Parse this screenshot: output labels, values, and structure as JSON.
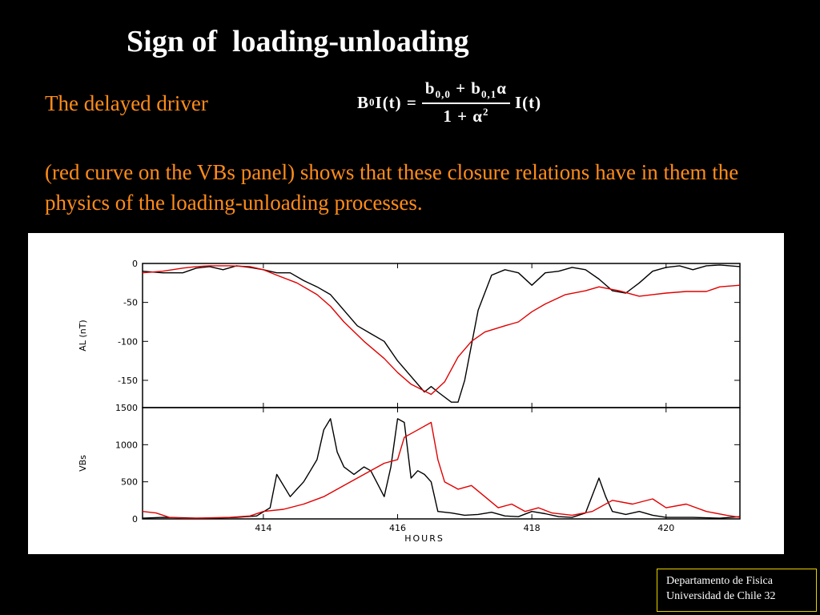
{
  "slide": {
    "title": "Sign of  loading-unloading",
    "driver_label": "The delayed driver",
    "explanation": "(red curve on the VBs panel) shows that these closure relations have in them the physics of the loading-unloading processes.",
    "equation": {
      "lhs_B": "B",
      "lhs_B_sub": "0",
      "lhs_rest": "I(t) =",
      "num_b1": "b",
      "num_b1_sub": "0,0",
      "num_plus": "+ b",
      "num_b2_sub": "0,1",
      "num_alpha": "α",
      "den_main": "1 + α",
      "den_sup": "2",
      "rhs": "I(t)"
    }
  },
  "footer": {
    "line1": "Departamento de Fisica",
    "line2": "Universidad de Chile  32"
  },
  "colors": {
    "background": "#000000",
    "orange_text": "#ff8c1a",
    "series_black": "#000000",
    "series_red": "#e00000",
    "footer_border": "#e8d000"
  },
  "chart_data": [
    {
      "type": "line",
      "ylabel": "AL (nT)",
      "xlim": [
        412.2,
        421.1
      ],
      "ylim": [
        -185,
        0
      ],
      "yticks": [
        0,
        -50,
        -100,
        -150
      ],
      "ytick_labels": [
        "0",
        "-50",
        "-100",
        "-150"
      ],
      "series": [
        {
          "color": "#000000",
          "x": [
            412.2,
            412.5,
            412.8,
            413.0,
            413.2,
            413.4,
            413.6,
            413.8,
            414.0,
            414.2,
            414.4,
            414.6,
            414.8,
            415.0,
            415.2,
            415.4,
            415.6,
            415.8,
            416.0,
            416.2,
            416.4,
            416.5,
            416.6,
            416.8,
            416.9,
            417.0,
            417.2,
            417.4,
            417.6,
            417.8,
            418.0,
            418.2,
            418.4,
            418.6,
            418.8,
            419.0,
            419.2,
            419.4,
            419.6,
            419.8,
            420.0,
            420.2,
            420.4,
            420.6,
            420.8,
            421.1
          ],
          "y": [
            -10,
            -12,
            -12,
            -6,
            -4,
            -8,
            -3,
            -5,
            -8,
            -12,
            -12,
            -22,
            -30,
            -40,
            -60,
            -80,
            -90,
            -100,
            -125,
            -145,
            -165,
            -158,
            -165,
            -178,
            -178,
            -150,
            -60,
            -15,
            -8,
            -12,
            -28,
            -12,
            -10,
            -5,
            -8,
            -20,
            -35,
            -38,
            -25,
            -10,
            -5,
            -3,
            -8,
            -3,
            -2,
            -4
          ]
        },
        {
          "color": "#e00000",
          "x": [
            412.2,
            412.5,
            412.8,
            413.0,
            413.2,
            413.5,
            413.8,
            414.0,
            414.2,
            414.5,
            414.8,
            415.0,
            415.2,
            415.5,
            415.8,
            416.0,
            416.2,
            416.5,
            416.7,
            416.9,
            417.1,
            417.3,
            417.6,
            417.8,
            418.0,
            418.2,
            418.5,
            418.8,
            419.0,
            419.3,
            419.6,
            419.8,
            420.0,
            420.3,
            420.6,
            420.8,
            421.1
          ],
          "y": [
            -12,
            -10,
            -6,
            -4,
            -3,
            -3,
            -4,
            -8,
            -15,
            -25,
            -40,
            -55,
            -75,
            -100,
            -122,
            -140,
            -155,
            -168,
            -152,
            -120,
            -100,
            -88,
            -80,
            -75,
            -62,
            -52,
            -40,
            -35,
            -30,
            -35,
            -42,
            -40,
            -38,
            -36,
            -36,
            -30,
            -28
          ]
        }
      ]
    },
    {
      "type": "line",
      "ylabel": "VBs",
      "xlabel": "HOURS",
      "xlim": [
        412.2,
        421.1
      ],
      "ylim": [
        0,
        1500
      ],
      "yticks": [
        0,
        500,
        1000,
        1500
      ],
      "ytick_labels": [
        "0",
        "500",
        "1000",
        "1500"
      ],
      "xticks": [
        414,
        416,
        418,
        420
      ],
      "xtick_labels": [
        "414",
        "416",
        "418",
        "420"
      ],
      "series": [
        {
          "color": "#000000",
          "x": [
            412.2,
            412.5,
            412.8,
            413.0,
            413.3,
            413.6,
            413.9,
            414.1,
            414.2,
            414.4,
            414.5,
            414.6,
            414.7,
            414.8,
            414.9,
            415.0,
            415.1,
            415.2,
            415.35,
            415.5,
            415.6,
            415.8,
            415.9,
            416.0,
            416.1,
            416.2,
            416.3,
            416.4,
            416.5,
            416.6,
            416.8,
            417.0,
            417.2,
            417.4,
            417.6,
            417.8,
            418.0,
            418.2,
            418.4,
            418.6,
            418.8,
            419.0,
            419.1,
            419.2,
            419.4,
            419.6,
            419.8,
            420.0,
            420.4,
            420.8,
            421.1
          ],
          "y": [
            10,
            20,
            15,
            10,
            12,
            20,
            40,
            150,
            600,
            300,
            400,
            500,
            650,
            800,
            1200,
            1350,
            900,
            700,
            600,
            700,
            650,
            300,
            700,
            1350,
            1300,
            550,
            650,
            600,
            500,
            100,
            80,
            50,
            60,
            90,
            40,
            30,
            100,
            70,
            30,
            20,
            80,
            550,
            300,
            100,
            60,
            100,
            50,
            20,
            20,
            10,
            30
          ]
        },
        {
          "color": "#e00000",
          "x": [
            412.2,
            412.4,
            412.6,
            412.8,
            413.0,
            413.5,
            413.8,
            414.0,
            414.3,
            414.6,
            414.9,
            415.2,
            415.5,
            415.8,
            416.0,
            416.1,
            416.3,
            416.5,
            416.6,
            416.7,
            416.9,
            417.1,
            417.3,
            417.5,
            417.7,
            417.9,
            418.1,
            418.3,
            418.6,
            418.9,
            419.2,
            419.5,
            419.8,
            420.0,
            420.3,
            420.6,
            420.9,
            421.1
          ],
          "y": [
            100,
            80,
            20,
            10,
            10,
            20,
            40,
            100,
            130,
            200,
            300,
            450,
            600,
            750,
            800,
            1100,
            1200,
            1300,
            800,
            500,
            400,
            450,
            300,
            150,
            200,
            100,
            150,
            80,
            50,
            100,
            250,
            200,
            270,
            150,
            200,
            100,
            50,
            20
          ]
        }
      ]
    }
  ]
}
